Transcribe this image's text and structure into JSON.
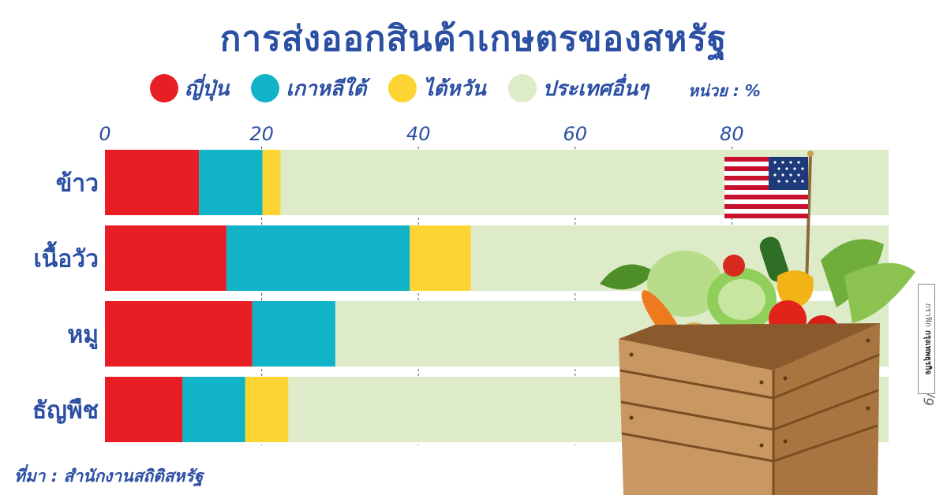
{
  "title": "การส่งออกสินค้าเกษตรของสหรัฐ",
  "unit_label": "หน่วย : %",
  "source": "ที่มา : สำนักงานสถิติสหรัฐ",
  "date": "6/05/2568",
  "credit": {
    "label": "กราฟิก",
    "brand": "กรุงเทพธุรกิจ"
  },
  "colors": {
    "title": "#2b4fa3",
    "japan": "#e81e25",
    "korea": "#10b3c7",
    "taiwan": "#fcd535",
    "others": "#deebc8"
  },
  "chart_data": {
    "type": "bar",
    "orientation": "horizontal",
    "stacked": true,
    "title": "การส่งออกสินค้าเกษตรของสหรัฐ",
    "xlabel": "",
    "ylabel": "",
    "xlim": [
      0,
      100
    ],
    "x_ticks": [
      0,
      20,
      40,
      60,
      80
    ],
    "grid": true,
    "legend_position": "top",
    "categories": [
      "ข้าว",
      "เนื้อวัว",
      "หมู",
      "ธัญพืช"
    ],
    "series": [
      {
        "name": "ญี่ปุ่น",
        "color": "#e81e25",
        "values": [
          12,
          15.5,
          18.8,
          9.9
        ]
      },
      {
        "name": "เกาหลีใต้",
        "color": "#10b3c7",
        "values": [
          8.1,
          23.4,
          10.6,
          8.0
        ]
      },
      {
        "name": "ไต้หวัน",
        "color": "#fcd535",
        "values": [
          2.3,
          7.8,
          0,
          5.5
        ]
      },
      {
        "name": "ประเทศอื่นๆ",
        "color": "#deebc8",
        "values": [
          77.6,
          53.3,
          70.6,
          76.6
        ]
      }
    ]
  }
}
